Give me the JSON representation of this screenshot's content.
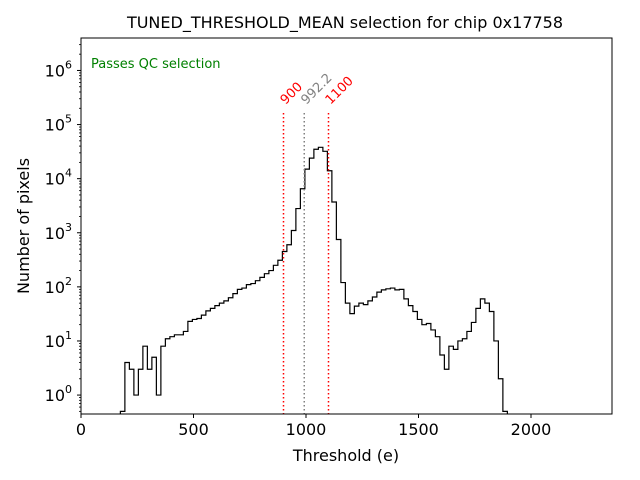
{
  "chart_data": {
    "type": "histogram",
    "title": "TUNED_THRESHOLD_MEAN selection for chip 0x17758",
    "xlabel": "Threshold (e)",
    "ylabel": "Number of pixels",
    "xlim": [
      0,
      2360
    ],
    "ylim_log10": [
      -0.35,
      6.6
    ],
    "xscale": "linear",
    "yscale": "log",
    "x_ticks": [
      {
        "value": 0,
        "label": "0"
      },
      {
        "value": 500,
        "label": "500"
      },
      {
        "value": 1000,
        "label": "1000"
      },
      {
        "value": 1500,
        "label": "1500"
      },
      {
        "value": 2000,
        "label": "2000"
      }
    ],
    "y_ticks": [
      {
        "exp": 0,
        "base": "10",
        "sup": "0"
      },
      {
        "exp": 1,
        "base": "10",
        "sup": "1"
      },
      {
        "exp": 2,
        "base": "10",
        "sup": "2"
      },
      {
        "exp": 3,
        "base": "10",
        "sup": "3"
      },
      {
        "exp": 4,
        "base": "10",
        "sup": "4"
      },
      {
        "exp": 5,
        "base": "10",
        "sup": "5"
      },
      {
        "exp": 6,
        "base": "10",
        "sup": "6"
      }
    ],
    "annotation": {
      "text": "Passes QC selection",
      "color": "#008000"
    },
    "vlines": [
      {
        "name": "lower-cut",
        "x": 900,
        "label": "900",
        "color": "#ff0000",
        "style": "dotted"
      },
      {
        "name": "mean",
        "x": 992.2,
        "label": "992.2",
        "color": "#808080",
        "style": "dotted"
      },
      {
        "name": "upper-cut",
        "x": 1100,
        "label": "1100",
        "color": "#ff0000",
        "style": "dotted"
      }
    ],
    "histogram": {
      "bin_start": 175,
      "bin_width": 20,
      "counts": [
        0.5,
        4,
        3,
        1,
        3,
        8,
        3,
        5,
        1,
        8,
        11,
        12,
        13,
        13,
        15,
        23,
        25,
        26,
        30,
        36,
        40,
        45,
        50,
        55,
        63,
        75,
        90,
        95,
        110,
        115,
        130,
        150,
        175,
        200,
        250,
        310,
        450,
        600,
        1100,
        2800,
        6500,
        15000,
        24000,
        35000,
        38000,
        32000,
        14000,
        3700,
        750,
        120,
        50,
        32,
        44,
        50,
        47,
        55,
        65,
        80,
        88,
        92,
        95,
        88,
        90,
        60,
        45,
        35,
        25,
        20,
        21,
        16,
        12,
        5.5,
        3,
        8,
        7,
        10,
        11,
        15,
        22,
        40,
        60,
        50,
        35,
        10,
        2,
        0.5
      ],
      "color": "#000000"
    }
  }
}
